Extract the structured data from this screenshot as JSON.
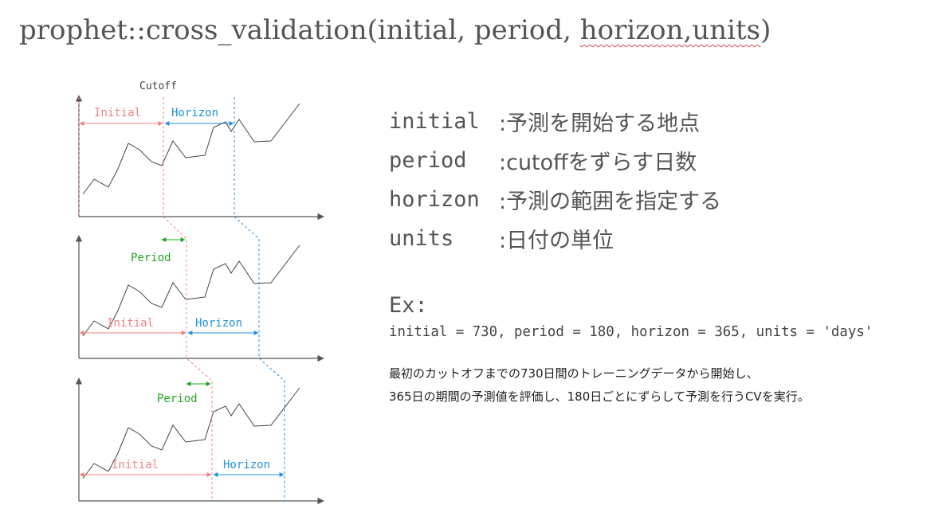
{
  "title": {
    "prefix": "prophet::cross_validation(initial, period, ",
    "underlined": "horizon,units",
    "suffix": ")"
  },
  "diagram": {
    "cutoff_label": "Cutoff",
    "initial_label": "Initial",
    "horizon_label": "Horizon",
    "period_label": "Period",
    "colors": {
      "initial": "#f08080",
      "horizon": "#1e90e0",
      "period": "#22a522",
      "line": "#444444",
      "axis": "#555555"
    }
  },
  "params": [
    {
      "name": "initial",
      "desc": ":予測を開始する地点"
    },
    {
      "name": "period",
      "desc": ":cutoffをずらす日数"
    },
    {
      "name": "horizon",
      "desc": ":予測の範囲を指定する"
    },
    {
      "name": "units",
      "desc": ":日付の単位"
    }
  ],
  "example": {
    "label": "Ex:",
    "code": "initial = 730, period = 180, horizon = 365, units = 'days'",
    "line1": "最初のカットオフまでの730日間のトレーニングデータから開始し、",
    "line2": "365日の期間の予測値を評価し、180日ごとにずらして予測を行うCVを実行。"
  }
}
